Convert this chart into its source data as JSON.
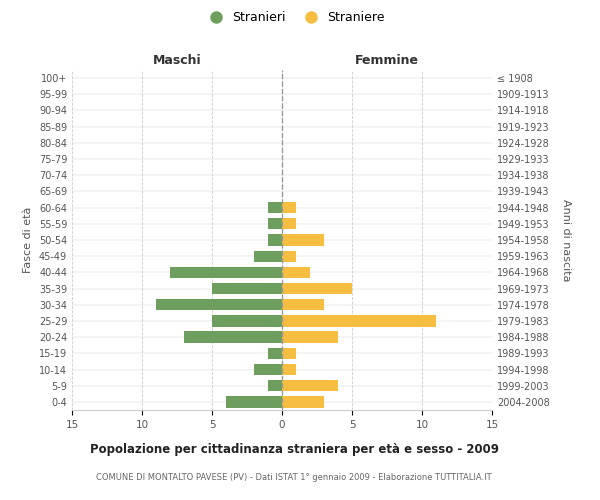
{
  "age_groups": [
    "0-4",
    "5-9",
    "10-14",
    "15-19",
    "20-24",
    "25-29",
    "30-34",
    "35-39",
    "40-44",
    "45-49",
    "50-54",
    "55-59",
    "60-64",
    "65-69",
    "70-74",
    "75-79",
    "80-84",
    "85-89",
    "90-94",
    "95-99",
    "100+"
  ],
  "birth_years": [
    "2004-2008",
    "1999-2003",
    "1994-1998",
    "1989-1993",
    "1984-1988",
    "1979-1983",
    "1974-1978",
    "1969-1973",
    "1964-1968",
    "1959-1963",
    "1954-1958",
    "1949-1953",
    "1944-1948",
    "1939-1943",
    "1934-1938",
    "1929-1933",
    "1924-1928",
    "1919-1923",
    "1914-1918",
    "1909-1913",
    "≤ 1908"
  ],
  "maschi": [
    4,
    1,
    2,
    1,
    7,
    5,
    9,
    5,
    8,
    2,
    1,
    1,
    1,
    0,
    0,
    0,
    0,
    0,
    0,
    0,
    0
  ],
  "femmine": [
    3,
    4,
    1,
    1,
    4,
    11,
    3,
    5,
    2,
    1,
    3,
    1,
    1,
    0,
    0,
    0,
    0,
    0,
    0,
    0,
    0
  ],
  "color_maschi": "#6e9e5e",
  "color_femmine": "#f5be41",
  "title": "Popolazione per cittadinanza straniera per età e sesso - 2009",
  "subtitle": "COMUNE DI MONTALTO PAVESE (PV) - Dati ISTAT 1° gennaio 2009 - Elaborazione TUTTITALIA.IT",
  "legend_maschi": "Stranieri",
  "legend_femmine": "Straniere",
  "xlabel_left": "Maschi",
  "xlabel_right": "Femmine",
  "ylabel_left": "Fasce di età",
  "ylabel_right": "Anni di nascita",
  "xlim": 15,
  "background_color": "#ffffff",
  "grid_color": "#cccccc"
}
